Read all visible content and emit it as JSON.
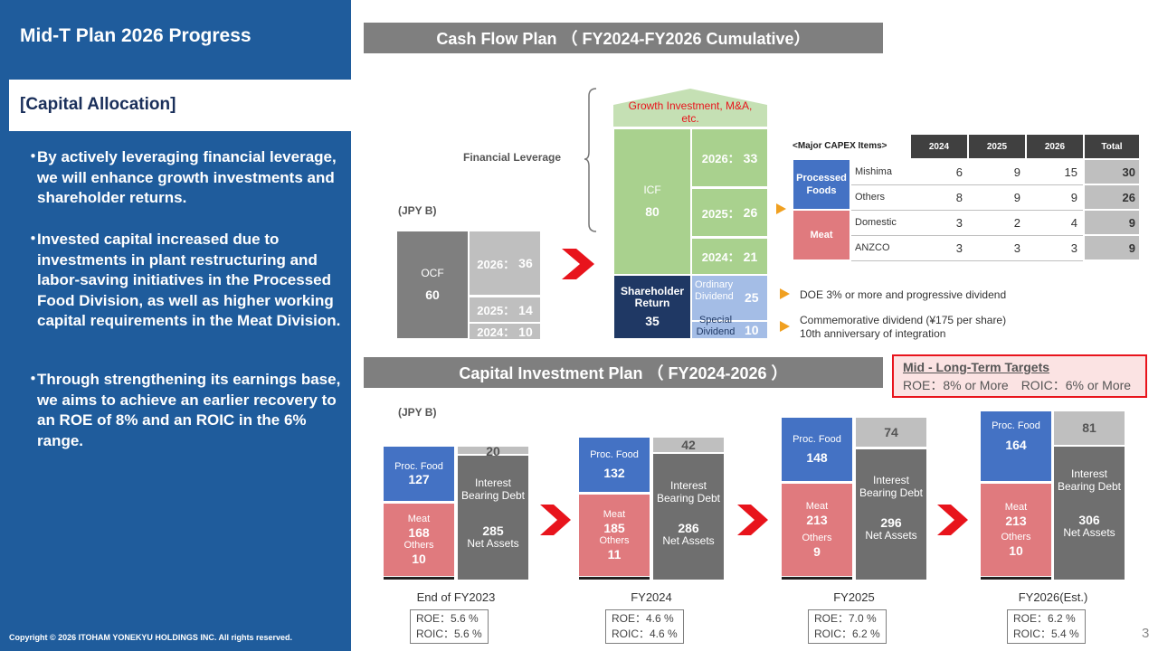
{
  "sidebar": {
    "title": "Mid-T Plan 2026 Progress",
    "subtitle": "[Capital Allocation]",
    "bullets": [
      "By actively leveraging financial leverage, we will enhance growth investments and shareholder returns.",
      "Invested capital increased due to investments in plant restructuring and labor-saving initiatives in the Processed Food Division, as well as higher working capital requirements in the Meat Division.",
      "Through strengthening its earnings base, we aims to achieve an earlier recovery to an ROE of 8% and an ROIC in the 6% range."
    ],
    "copyright": "Copyright © 2026 ITOHAM YONEKYU HOLDINGS INC. All rights reserved."
  },
  "page_number": "3",
  "cashflow": {
    "header": "Cash Flow Plan （ FY2024-FY2026 Cumulative）",
    "unit": "(JPY B)",
    "financial_leverage": "Financial Leverage",
    "growth_label": "Growth Investment, M&A, etc.",
    "ocf": {
      "label": "OCF",
      "value": "60"
    },
    "ocf_years": [
      {
        "label": "2026：",
        "value": "36"
      },
      {
        "label": "2025：",
        "value": "14"
      },
      {
        "label": "2024：",
        "value": "10"
      }
    ],
    "icf": {
      "label": "ICF",
      "value": "80"
    },
    "icf_years": [
      {
        "label": "2026：",
        "value": "33"
      },
      {
        "label": "2025：",
        "value": "26"
      },
      {
        "label": "2024：",
        "value": "21"
      }
    ],
    "shareholder": {
      "label": "Shareholder Return",
      "value": "35"
    },
    "ordinary": {
      "label": "Ordinary Dividend",
      "value": "25"
    },
    "special": {
      "label": "Special Dividend",
      "value": "10"
    },
    "doe_note": "DOE 3% or more and progressive dividend",
    "comm_note_1": "Commemorative dividend (¥175 per share)",
    "comm_note_2": "10th anniversary of integration"
  },
  "capex": {
    "title": "<Major CAPEX Items>",
    "columns": [
      "2024",
      "2025",
      "2026",
      "Total"
    ],
    "groups": [
      {
        "name": "Processed Foods",
        "rows": [
          {
            "item": "Mishima",
            "values": [
              "6",
              "9",
              "15"
            ],
            "total": "30"
          },
          {
            "item": "Others",
            "values": [
              "8",
              "9",
              "9"
            ],
            "total": "26"
          }
        ]
      },
      {
        "name": "Meat",
        "rows": [
          {
            "item": "Domestic",
            "values": [
              "3",
              "2",
              "4"
            ],
            "total": "9"
          },
          {
            "item": "ANZCO",
            "values": [
              "3",
              "3",
              "3"
            ],
            "total": "9"
          }
        ]
      }
    ]
  },
  "targets": {
    "title": "Mid - Long-Term Targets",
    "text": "ROE：8% or More　ROIC：6% or More"
  },
  "investment": {
    "header": "Capital Investment Plan （ FY2024-2026 ）",
    "unit": "(JPY B)",
    "labels": {
      "proc": "Proc. Food",
      "meat": "Meat",
      "others": "Others",
      "ibd": "Interest Bearing Debt",
      "na": "Net Assets"
    },
    "periods": [
      {
        "label": "End of FY2023",
        "proc": "127",
        "meat": "168",
        "others": "10",
        "ibd": "20",
        "na": "285",
        "roe": "ROE：5.6 %",
        "roic": "ROIC：5.6 %"
      },
      {
        "label": "FY2024",
        "proc": "132",
        "meat": "185",
        "others": "11",
        "ibd": "42",
        "na": "286",
        "roe": "ROE：4.6 %",
        "roic": "ROIC：4.6 %"
      },
      {
        "label": "FY2025",
        "proc": "148",
        "meat": "213",
        "others": "9",
        "ibd": "74",
        "na": "296",
        "roe": "ROE：7.0 %",
        "roic": "ROIC：6.2 %"
      },
      {
        "label": "FY2026(Est.)",
        "proc": "164",
        "meat": "213",
        "others": "10",
        "ibd": "81",
        "na": "306",
        "roe": "ROE：6.2 %",
        "roic": "ROIC：5.4 %"
      }
    ]
  },
  "colors": {
    "sidebar": "#1f5c9c",
    "proc_food": "#4472c4",
    "meat": "#e07a7e",
    "net_assets": "#6f6f6f",
    "debt": "#bfbfbf",
    "icf": "#a9d18e",
    "shareholder": "#1f3864",
    "dividend": "#a4bde6",
    "arrow": "#e8141c"
  }
}
